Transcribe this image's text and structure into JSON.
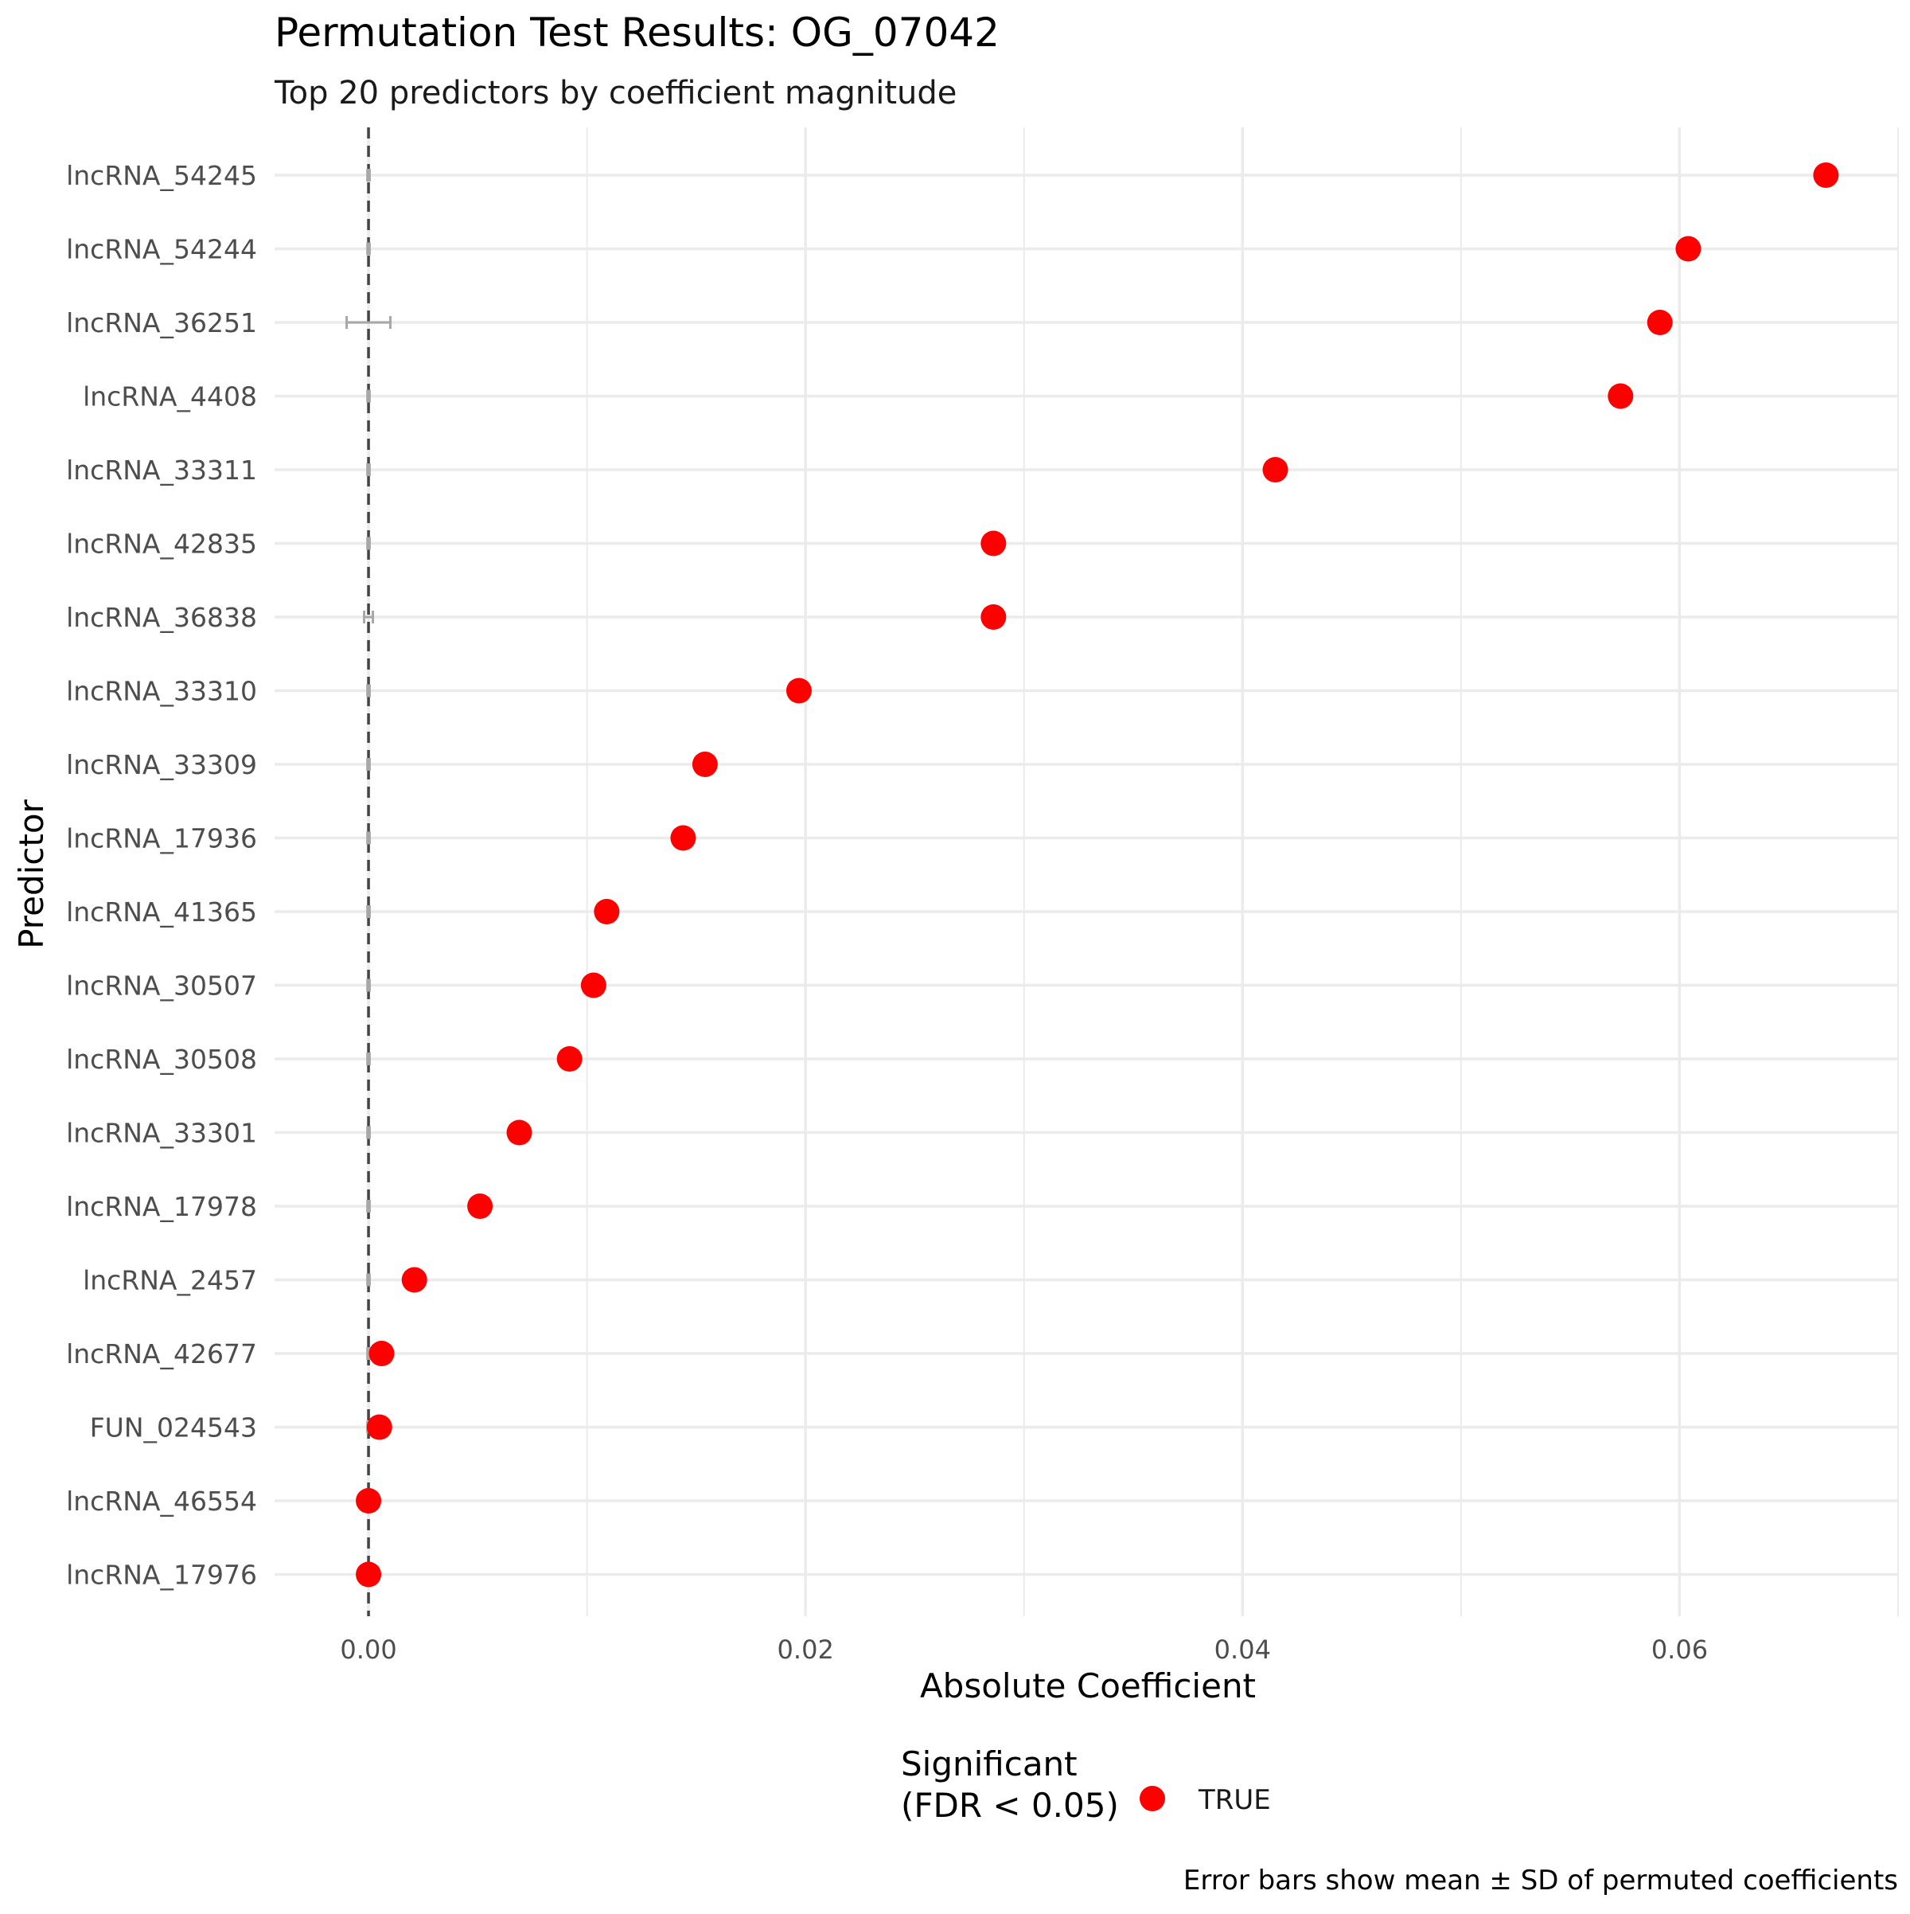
{
  "chart_data": {
    "type": "scatter",
    "title": "Permutation Test Results: OG_07042",
    "subtitle": "Top 20 predictors by coefficient magnitude",
    "xlabel": "Absolute Coefficient",
    "ylabel": "Predictor",
    "caption": "Error bars show mean ± SD of permuted coefficients",
    "xlim": [
      -0.0043,
      0.07
    ],
    "x_ticks": [
      0.0,
      0.02,
      0.04,
      0.06
    ],
    "x_tick_labels": [
      "0.00",
      "0.02",
      "0.04",
      "0.06"
    ],
    "reference_line_x": 0,
    "grid": true,
    "legend": {
      "title_line1": "Significant",
      "title_line2": "(FDR < 0.05)",
      "position": "bottom",
      "entries": [
        {
          "label": "TRUE",
          "color": "#ff0000"
        }
      ]
    },
    "colors": {
      "point": "#ff0000",
      "errorbar": "#a8a8a8",
      "reference_line": "#444444",
      "grid": "#ebebeb"
    },
    "points": [
      {
        "label": "lncRNA_54245",
        "value": 0.0667,
        "perm_mean": 0.0,
        "perm_sd": 5e-05
      },
      {
        "label": "lncRNA_54244",
        "value": 0.0604,
        "perm_mean": 0.0,
        "perm_sd": 5e-05
      },
      {
        "label": "lncRNA_36251",
        "value": 0.0591,
        "perm_mean": 0.0,
        "perm_sd": 0.001
      },
      {
        "label": "lncRNA_4408",
        "value": 0.0573,
        "perm_mean": 0.0,
        "perm_sd": 5e-05
      },
      {
        "label": "lncRNA_33311",
        "value": 0.0415,
        "perm_mean": 0.0,
        "perm_sd": 5e-05
      },
      {
        "label": "lncRNA_42835",
        "value": 0.0286,
        "perm_mean": 0.0,
        "perm_sd": 5e-05
      },
      {
        "label": "lncRNA_36838",
        "value": 0.0286,
        "perm_mean": 0.0,
        "perm_sd": 0.0002
      },
      {
        "label": "lncRNA_33310",
        "value": 0.0197,
        "perm_mean": 0.0,
        "perm_sd": 5e-05
      },
      {
        "label": "lncRNA_33309",
        "value": 0.0154,
        "perm_mean": 0.0,
        "perm_sd": 5e-05
      },
      {
        "label": "lncRNA_17936",
        "value": 0.0144,
        "perm_mean": 0.0,
        "perm_sd": 5e-05
      },
      {
        "label": "lncRNA_41365",
        "value": 0.0109,
        "perm_mean": 0.0,
        "perm_sd": 5e-05
      },
      {
        "label": "lncRNA_30507",
        "value": 0.0103,
        "perm_mean": 0.0,
        "perm_sd": 5e-05
      },
      {
        "label": "lncRNA_30508",
        "value": 0.0092,
        "perm_mean": 0.0,
        "perm_sd": 5e-05
      },
      {
        "label": "lncRNA_33301",
        "value": 0.0069,
        "perm_mean": 0.0,
        "perm_sd": 5e-05
      },
      {
        "label": "lncRNA_17978",
        "value": 0.0051,
        "perm_mean": 0.0,
        "perm_sd": 5e-05
      },
      {
        "label": "lncRNA_2457",
        "value": 0.0021,
        "perm_mean": 0.0,
        "perm_sd": 5e-05
      },
      {
        "label": "lncRNA_42677",
        "value": 0.0006,
        "perm_mean": 0.0,
        "perm_sd": 5e-05
      },
      {
        "label": "FUN_024543",
        "value": 0.0005,
        "perm_mean": 0.0,
        "perm_sd": 5e-05
      },
      {
        "label": "lncRNA_46554",
        "value": 0.0,
        "perm_mean": 0.0,
        "perm_sd": 5e-05
      },
      {
        "label": "lncRNA_17976",
        "value": 0.0,
        "perm_mean": 0.0,
        "perm_sd": 5e-05
      }
    ]
  }
}
